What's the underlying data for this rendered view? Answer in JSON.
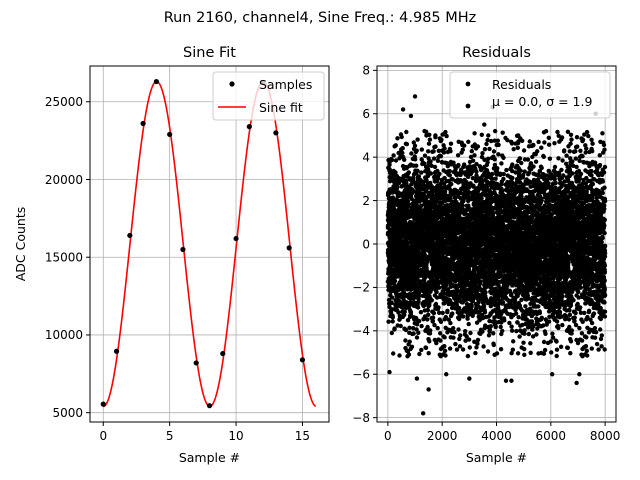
{
  "figure": {
    "suptitle": "Run 2160, channel4, Sine Freq.: 4.985 MHz"
  },
  "chart_data": [
    {
      "type": "line",
      "title": "Sine Fit",
      "xlabel": "Sample #",
      "ylabel": "ADC Counts",
      "xlim": [
        -1,
        17
      ],
      "ylim": [
        4400,
        27300
      ],
      "xticks": [
        0,
        5,
        10,
        15
      ],
      "yticks": [
        5000,
        10000,
        15000,
        20000,
        25000
      ],
      "grid": true,
      "legend_position": "top-right",
      "series": [
        {
          "name": "Samples",
          "kind": "scatter",
          "color": "#000000",
          "x": [
            0,
            1,
            2,
            3,
            4,
            5,
            6,
            7,
            8,
            9,
            10,
            11,
            12,
            13,
            14,
            15
          ],
          "y": [
            5550,
            8950,
            16400,
            23600,
            26300,
            22900,
            15500,
            8200,
            5450,
            8800,
            16200,
            23400,
            26250,
            23000,
            15600,
            8400
          ]
        },
        {
          "name": "Sine fit",
          "kind": "line",
          "color": "#ff0000",
          "function": "sine",
          "offset": 15850,
          "amplitude": 10450,
          "period_samples": 8.023,
          "phase_sample": 2.01,
          "x_range": [
            0,
            16
          ]
        }
      ]
    },
    {
      "type": "scatter",
      "title": "Residuals",
      "xlabel": "Sample #",
      "ylabel": "",
      "xlim": [
        -400,
        8400
      ],
      "ylim": [
        -8.2,
        8.2
      ],
      "xticks": [
        0,
        2000,
        4000,
        6000,
        8000
      ],
      "yticks": [
        -8,
        -6,
        -4,
        -2,
        0,
        2,
        4,
        6,
        8
      ],
      "grid": true,
      "legend_position": "top-right",
      "series": [
        {
          "name": "Residuals",
          "color": "#000000",
          "n_points": 8000,
          "x_range": [
            0,
            8000
          ],
          "mean": 0.0,
          "std": 1.9,
          "x": [
            60,
            250,
            560,
            700,
            850,
            1000,
            1070,
            1300,
            1350,
            1420,
            1500,
            1750,
            2000,
            2150,
            3000,
            3550,
            3850,
            3950,
            4350,
            4550,
            4800,
            5200,
            5550,
            6050,
            6650,
            6950,
            7050,
            7500,
            7650,
            7900
          ],
          "y": [
            -5.9,
            4.5,
            6.2,
            4.6,
            5.9,
            6.8,
            -6.2,
            -7.8,
            5.2,
            5.0,
            -6.7,
            5.0,
            4.3,
            -6.0,
            -6.2,
            5.5,
            6.3,
            5.2,
            -6.3,
            -6.3,
            5.0,
            4.5,
            4.7,
            -6.0,
            4.5,
            -6.4,
            -6.0,
            4.8,
            6.0,
            5.1
          ]
        }
      ],
      "legend_extra": [
        "μ = 0.0, σ = 1.9"
      ]
    }
  ]
}
